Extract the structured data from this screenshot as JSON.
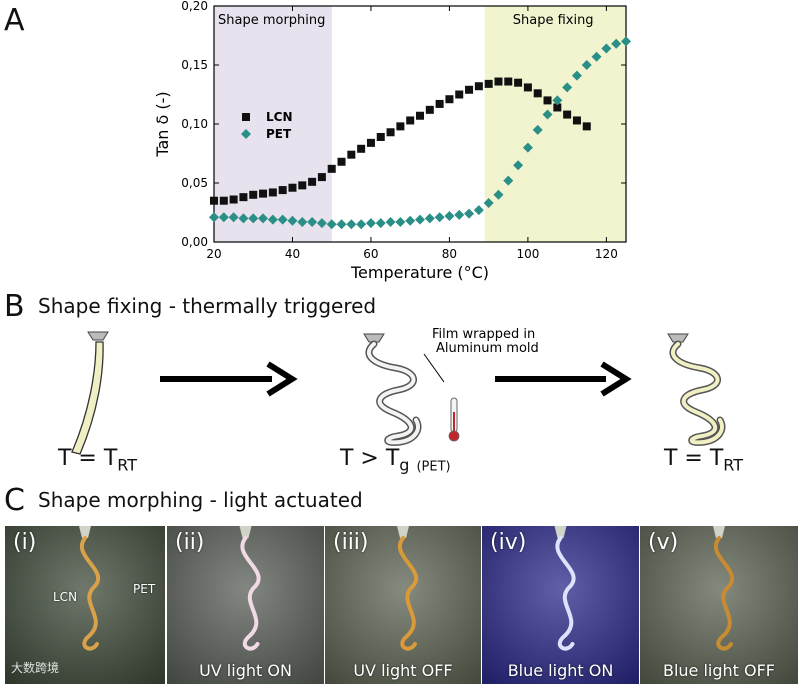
{
  "panel_a": {
    "letter": "A",
    "region_left_label": "Shape morphing",
    "region_right_label": "Shape fixing",
    "chart_data": {
      "type": "scatter",
      "xlabel": "Temperature (°C)",
      "ylabel": "Tan δ (-)",
      "xlim": [
        20,
        125
      ],
      "ylim": [
        0,
        0.2
      ],
      "x_ticks": [
        "20",
        "40",
        "60",
        "80",
        "100",
        "120"
      ],
      "y_ticks": [
        "0,00",
        "0,05",
        "0,10",
        "0,15",
        "0,20"
      ],
      "shaded_regions": [
        {
          "name": "Shape morphing",
          "x_from": 20,
          "x_to": 50,
          "color": "#e7e2ee"
        },
        {
          "name": "Shape fixing",
          "x_from": 89,
          "x_to": 125,
          "color": "#f2f4cf"
        }
      ],
      "legend_position": "middle-left",
      "series": [
        {
          "name": "LCN",
          "marker": "square",
          "color": "#111111",
          "x": [
            20,
            22.5,
            25,
            27.5,
            30,
            32.5,
            35,
            37.5,
            40,
            42.5,
            45,
            47.5,
            50,
            52.5,
            55,
            57.5,
            60,
            62.5,
            65,
            67.5,
            70,
            72.5,
            75,
            77.5,
            80,
            82.5,
            85,
            87.5,
            90,
            92.5,
            95,
            97.5,
            100,
            102.5,
            105,
            107.5,
            110,
            112.5,
            115
          ],
          "y": [
            0.035,
            0.035,
            0.036,
            0.038,
            0.04,
            0.041,
            0.042,
            0.044,
            0.046,
            0.048,
            0.051,
            0.055,
            0.062,
            0.068,
            0.074,
            0.079,
            0.084,
            0.089,
            0.093,
            0.098,
            0.103,
            0.107,
            0.112,
            0.117,
            0.121,
            0.125,
            0.129,
            0.132,
            0.134,
            0.136,
            0.136,
            0.135,
            0.131,
            0.126,
            0.12,
            0.114,
            0.108,
            0.103,
            0.098
          ]
        },
        {
          "name": "PET",
          "marker": "diamond",
          "color": "#2a8f86",
          "x": [
            20,
            22.5,
            25,
            27.5,
            30,
            32.5,
            35,
            37.5,
            40,
            42.5,
            45,
            47.5,
            50,
            52.5,
            55,
            57.5,
            60,
            62.5,
            65,
            67.5,
            70,
            72.5,
            75,
            77.5,
            80,
            82.5,
            85,
            87.5,
            90,
            92.5,
            95,
            97.5,
            100,
            102.5,
            105,
            107.5,
            110,
            112.5,
            115,
            117.5,
            120,
            122.5,
            125
          ],
          "y": [
            0.021,
            0.021,
            0.021,
            0.02,
            0.02,
            0.02,
            0.019,
            0.019,
            0.018,
            0.017,
            0.017,
            0.016,
            0.015,
            0.015,
            0.015,
            0.015,
            0.016,
            0.016,
            0.017,
            0.017,
            0.018,
            0.019,
            0.02,
            0.021,
            0.022,
            0.023,
            0.024,
            0.027,
            0.033,
            0.04,
            0.052,
            0.065,
            0.08,
            0.095,
            0.108,
            0.12,
            0.131,
            0.141,
            0.15,
            0.157,
            0.164,
            0.168,
            0.17
          ]
        }
      ]
    }
  },
  "panel_b": {
    "letter": "B",
    "title": "Shape fixing - thermally triggered",
    "annotation_line1": "Film wrapped in",
    "annotation_line2": "Aluminum mold",
    "eq_left": {
      "T": "T = T",
      "sub": "RT"
    },
    "eq_mid": {
      "T": "T > T",
      "sub": "g",
      "suffix": "(PET)"
    },
    "eq_right": {
      "T": "T = T",
      "sub": "RT"
    }
  },
  "panel_c": {
    "letter": "C",
    "title": "Shape morphing - light actuated",
    "photos": [
      {
        "index": "(i)",
        "caption": "",
        "bg": "#3f4b3a",
        "ribbon": "#d9a24a",
        "labels": [
          "LCN",
          "PET"
        ]
      },
      {
        "index": "(ii)",
        "caption": "UV light ON",
        "bg": "#5a5f57",
        "ribbon": "#f1d9e6",
        "labels": []
      },
      {
        "index": "(iii)",
        "caption": "UV light OFF",
        "bg": "#5d6453",
        "ribbon": "#d99a3a",
        "labels": []
      },
      {
        "index": "(iv)",
        "caption": "Blue light ON",
        "bg": "#2b2a8a",
        "ribbon": "#dfe2ff",
        "labels": []
      },
      {
        "index": "(v)",
        "caption": "Blue light OFF",
        "bg": "#5a6252",
        "ribbon": "#c98b32",
        "labels": []
      }
    ],
    "watermark": "大数跨境"
  }
}
